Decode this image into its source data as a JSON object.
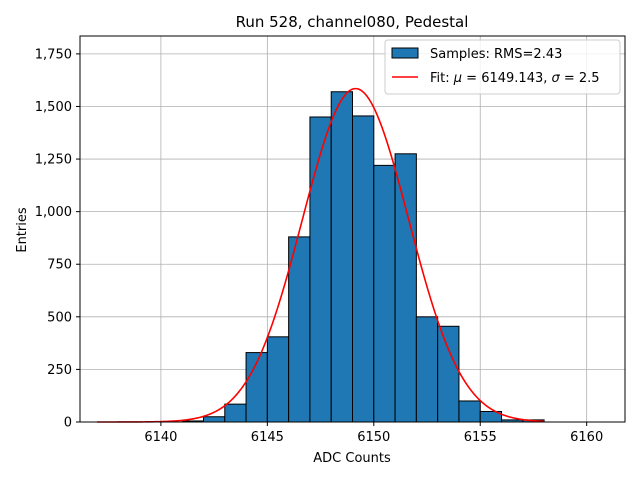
{
  "chart_data": {
    "type": "bar",
    "title": "Run 528, channel080, Pedestal",
    "xlabel": "ADC Counts",
    "ylabel": "Entries",
    "xlim": [
      6136.2,
      6161.8
    ],
    "ylim": [
      0,
      1835
    ],
    "xticks": [
      6140,
      6145,
      6150,
      6155,
      6160
    ],
    "yticks": [
      0,
      250,
      500,
      750,
      1000,
      1250,
      1500,
      1750
    ],
    "grid": true,
    "legend_position": "top-right",
    "histogram": {
      "name": "Samples: RMS=2.43",
      "color": "#1f77b4",
      "edgecolor": "#000000",
      "bin_edges": [
        6137,
        6138,
        6139,
        6140,
        6141,
        6142,
        6143,
        6144,
        6145,
        6146,
        6147,
        6148,
        6149,
        6150,
        6151,
        6152,
        6153,
        6154,
        6155,
        6156,
        6157,
        6158
      ],
      "counts": [
        0,
        0,
        0,
        0,
        5,
        25,
        85,
        330,
        405,
        880,
        1450,
        1570,
        1455,
        1220,
        1275,
        500,
        455,
        100,
        50,
        10,
        10
      ]
    },
    "fit": {
      "name": "Fit: μ = 6149.143, σ = 2.5",
      "color": "#ff0000",
      "mu": 6149.143,
      "sigma": 2.5,
      "amplitude": 1585,
      "x_range": [
        6137,
        6158
      ]
    }
  },
  "legend": {
    "items": [
      {
        "label_prefix": "Samples: RMS=2.43"
      },
      {
        "label_prefix": "Fit: ",
        "mu_symbol": "μ",
        "mu_text": " = 6149.143, ",
        "sigma_symbol": "σ",
        "sigma_text": " = 2.5"
      }
    ]
  }
}
